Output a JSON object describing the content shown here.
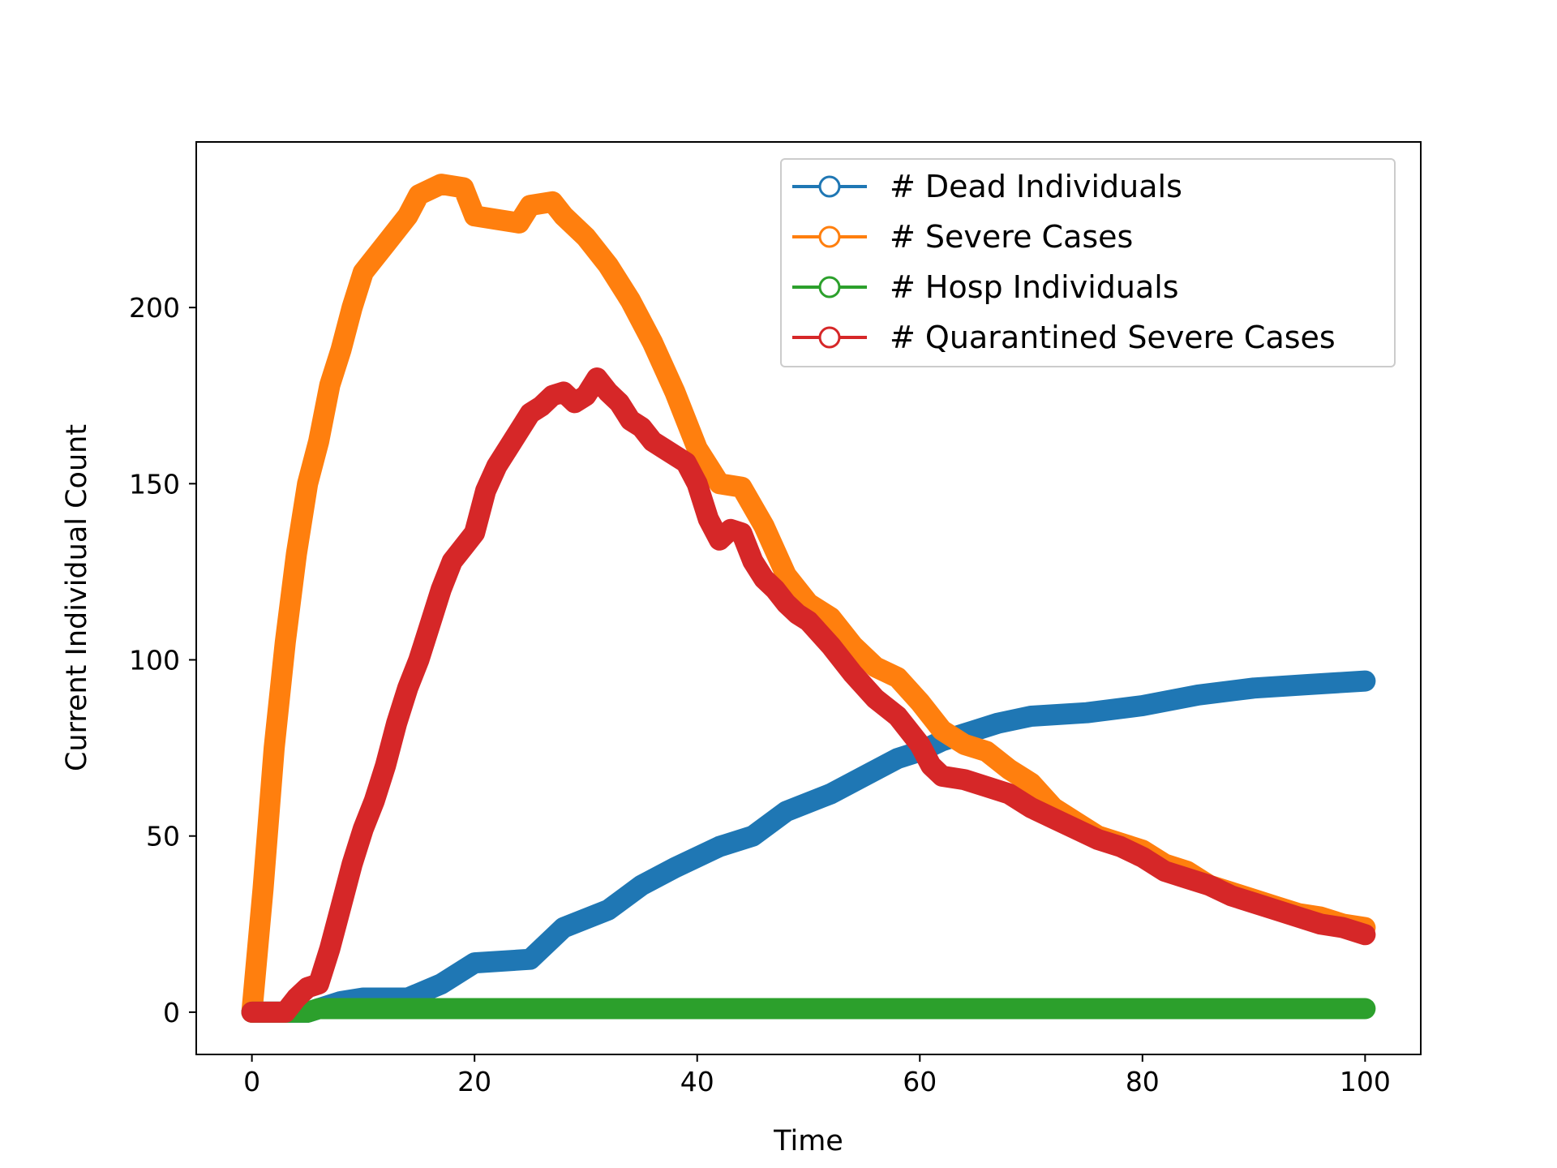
{
  "chart_data": {
    "type": "line",
    "title": "",
    "xlabel": "Time",
    "ylabel": "Current Individual Count",
    "xlim": [
      -5,
      105
    ],
    "ylim": [
      -12,
      247
    ],
    "xticks": [
      0,
      20,
      40,
      60,
      80,
      100
    ],
    "yticks": [
      0,
      50,
      100,
      150,
      200
    ],
    "grid": false,
    "legend_position": "top-right",
    "series": [
      {
        "name": "# Dead Individuals",
        "color": "#1f77b4",
        "x": [
          0,
          5,
          8,
          10,
          14,
          17,
          20,
          25,
          28,
          32,
          35,
          38,
          42,
          45,
          48,
          52,
          55,
          58,
          60,
          62,
          64,
          67,
          70,
          75,
          80,
          85,
          90,
          95,
          100
        ],
        "y": [
          0,
          0,
          3,
          4,
          4,
          8,
          14,
          15,
          24,
          29,
          36,
          41,
          47,
          50,
          57,
          62,
          67,
          72,
          74,
          77,
          79,
          82,
          84,
          85,
          87,
          90,
          92,
          93,
          94
        ]
      },
      {
        "name": "# Severe Cases",
        "color": "#ff7f0e",
        "x": [
          0,
          1,
          2,
          3,
          4,
          5,
          6,
          7,
          8,
          9,
          10,
          12,
          14,
          15,
          17,
          19,
          20,
          22,
          24,
          25,
          27,
          28,
          30,
          32,
          34,
          36,
          38,
          40,
          42,
          44,
          46,
          48,
          50,
          52,
          54,
          56,
          58,
          60,
          62,
          64,
          66,
          68,
          70,
          72,
          74,
          76,
          78,
          80,
          82,
          84,
          86,
          88,
          90,
          92,
          94,
          96,
          98,
          100
        ],
        "y": [
          0,
          35,
          75,
          105,
          130,
          150,
          162,
          178,
          188,
          200,
          210,
          218,
          226,
          232,
          235,
          234,
          226,
          225,
          224,
          229,
          230,
          226,
          220,
          212,
          202,
          190,
          176,
          160,
          150,
          149,
          138,
          124,
          116,
          112,
          104,
          98,
          95,
          88,
          80,
          76,
          74,
          69,
          65,
          58,
          54,
          50,
          48,
          46,
          42,
          40,
          36,
          34,
          32,
          30,
          28,
          27,
          25,
          24
        ]
      },
      {
        "name": "# Hosp Individuals",
        "color": "#2ca02c",
        "x": [
          0,
          5,
          6,
          100
        ],
        "y": [
          0,
          0,
          1,
          1
        ]
      },
      {
        "name": "# Quarantined Severe Cases",
        "color": "#d62728",
        "x": [
          0,
          3,
          4,
          5,
          6,
          7,
          8,
          9,
          10,
          11,
          12,
          13,
          14,
          15,
          16,
          17,
          18,
          19,
          20,
          21,
          22,
          23,
          24,
          25,
          26,
          27,
          28,
          29,
          30,
          31,
          32,
          33,
          34,
          35,
          36,
          37,
          38,
          39,
          40,
          41,
          42,
          43,
          44,
          45,
          46,
          47,
          48,
          49,
          50,
          52,
          54,
          56,
          58,
          60,
          61,
          62,
          64,
          66,
          68,
          70,
          72,
          74,
          76,
          78,
          80,
          82,
          84,
          86,
          88,
          90,
          92,
          94,
          96,
          98,
          100
        ],
        "y": [
          0,
          0,
          4,
          7,
          8,
          18,
          30,
          42,
          52,
          60,
          70,
          82,
          92,
          100,
          110,
          120,
          128,
          132,
          136,
          148,
          155,
          160,
          165,
          170,
          172,
          175,
          176,
          173,
          175,
          180,
          176,
          173,
          168,
          166,
          162,
          160,
          158,
          156,
          150,
          140,
          134,
          137,
          136,
          128,
          123,
          120,
          116,
          113,
          111,
          104,
          96,
          89,
          84,
          76,
          70,
          67,
          66,
          64,
          62,
          58,
          55,
          52,
          49,
          47,
          44,
          40,
          38,
          36,
          33,
          31,
          29,
          27,
          25,
          24,
          22
        ]
      }
    ]
  }
}
